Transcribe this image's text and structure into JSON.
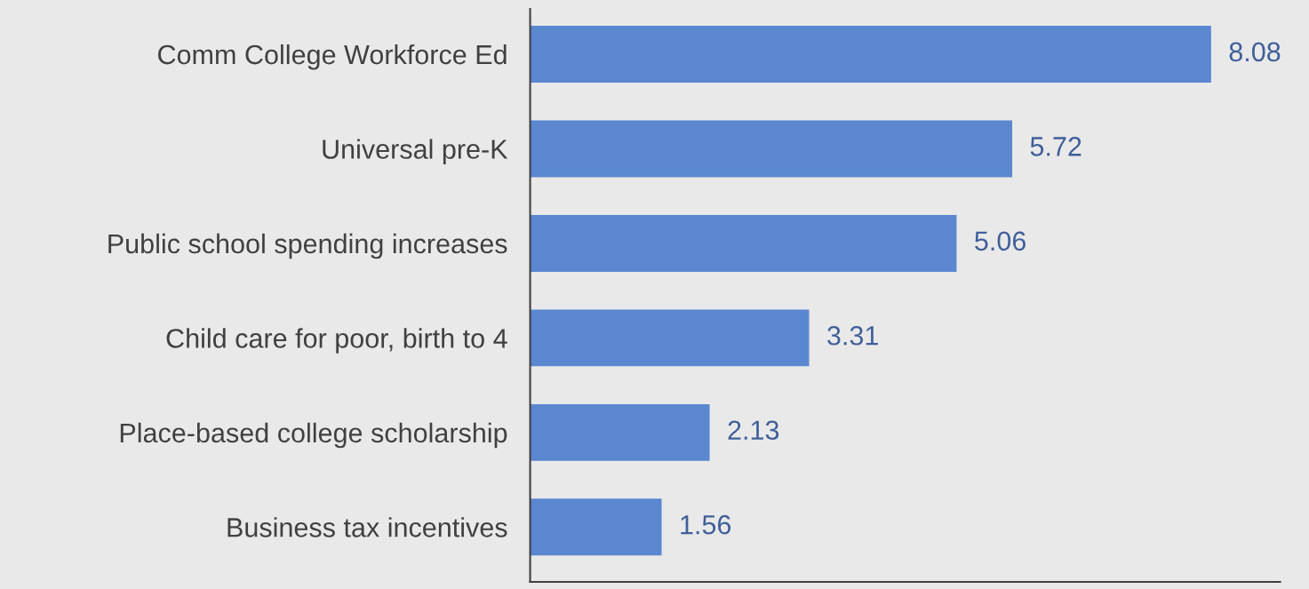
{
  "chart_data": {
    "type": "bar",
    "orientation": "horizontal",
    "categories": [
      "Comm College Workforce Ed",
      "Universal pre-K",
      "Public school spending increases",
      "Child care for poor, birth to 4",
      "Place-based college scholarship",
      "Business tax incentives"
    ],
    "values": [
      8.08,
      5.72,
      5.06,
      3.31,
      2.13,
      1.56
    ],
    "color": "#5b87d0",
    "xlim": [
      0,
      8.9
    ],
    "tick_labels": "y",
    "data_labels": true,
    "grid": false,
    "legend": false
  }
}
